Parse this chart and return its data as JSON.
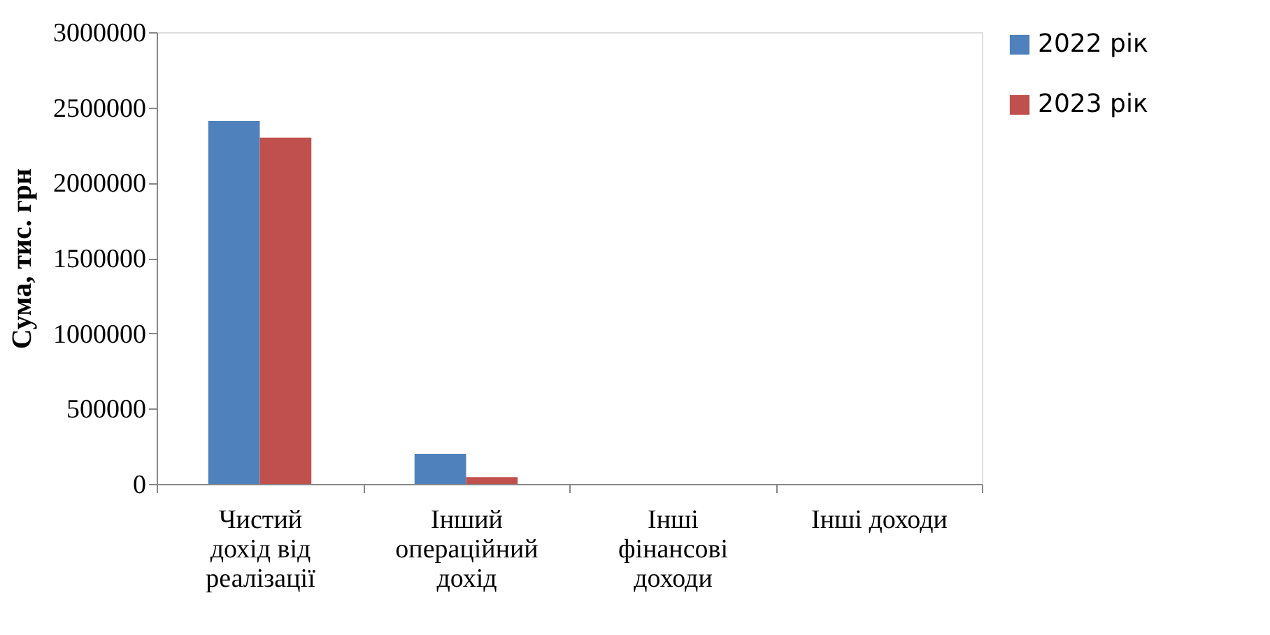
{
  "chart_data": {
    "type": "bar",
    "ylabel": "Сума, тис. грн",
    "categories": [
      "Чистий дохід від реалізації",
      "Інший операційний дохід",
      "Інші фінансові доходи",
      "Інші доходи"
    ],
    "series": [
      {
        "name": "2022 рік",
        "color": "#4f81bd",
        "values": [
          2410000,
          200000,
          0,
          0
        ]
      },
      {
        "name": "2023 рік",
        "color": "#c0504d",
        "values": [
          2300000,
          45000,
          0,
          0
        ]
      }
    ],
    "ylim": [
      0,
      3000000
    ],
    "yticks": [
      0,
      500000,
      1000000,
      1500000,
      2000000,
      2500000,
      3000000
    ],
    "grid": false,
    "legend": "right"
  }
}
